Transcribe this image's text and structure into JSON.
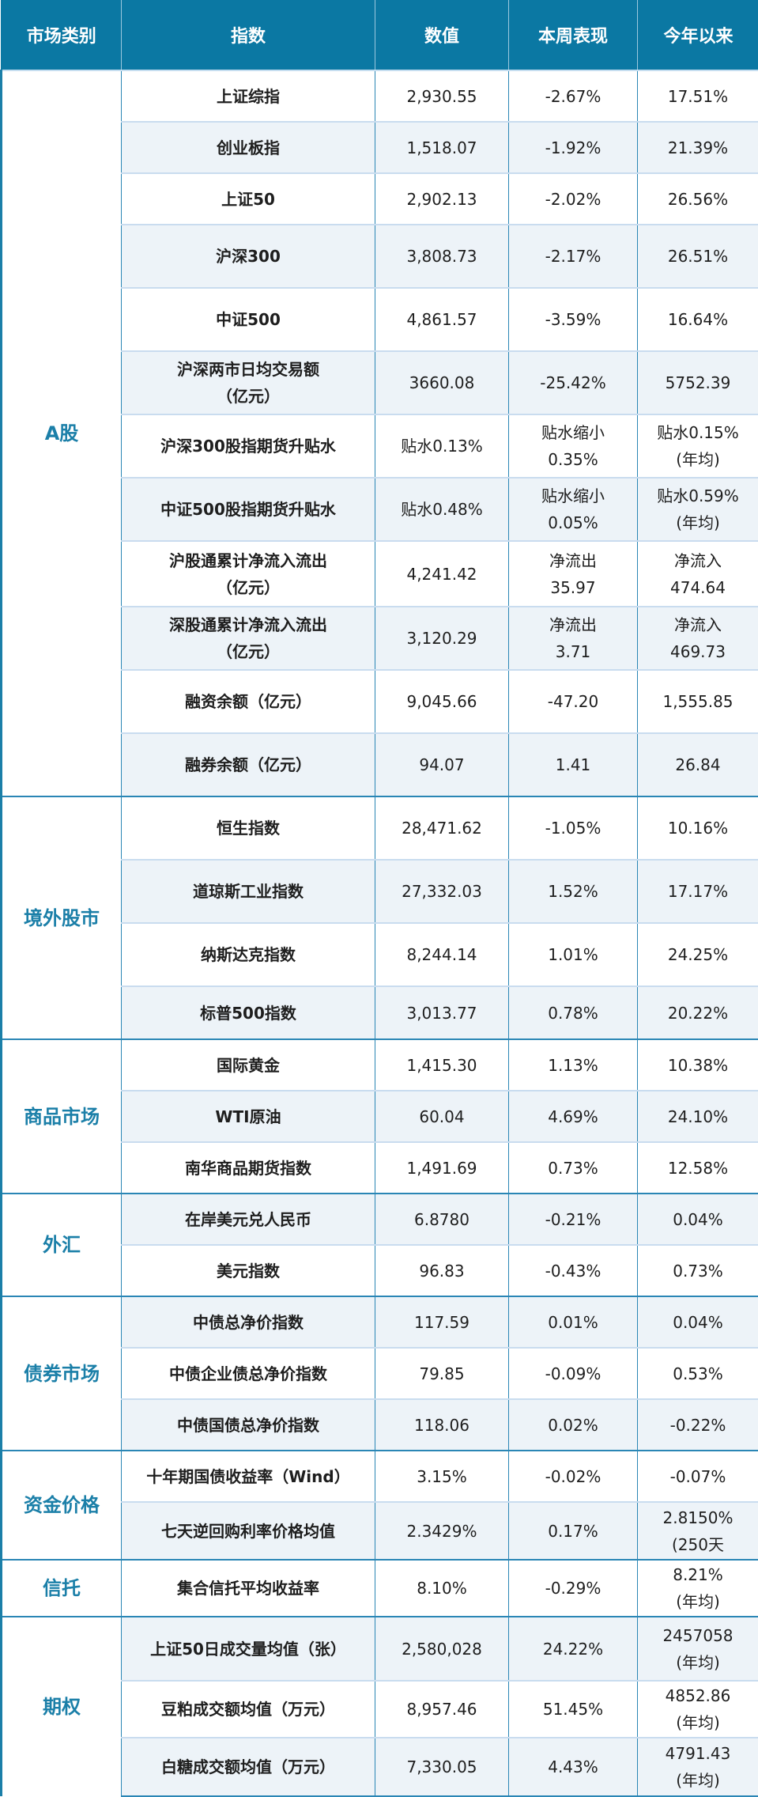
{
  "header": {
    "col_category": "市场类别",
    "col_index": "指数",
    "col_value": "数值",
    "col_week": "本周表现",
    "col_ytd": "今年以来"
  },
  "colors": {
    "header_bg": "#0b78a3",
    "category_text": "#1b7fa8",
    "row_shade": "#edf3f8"
  },
  "sections": [
    {
      "category": "A股",
      "rows": [
        {
          "index": "上证综指",
          "value": "2,930.55",
          "week": "-2.67%",
          "ytd": "17.51%"
        },
        {
          "index": "创业板指",
          "value": "1,518.07",
          "week": "-1.92%",
          "ytd": "21.39%"
        },
        {
          "index": "上证50",
          "value": "2,902.13",
          "week": "-2.02%",
          "ytd": "26.56%"
        },
        {
          "index": "沪深300",
          "value": "3,808.73",
          "week": "-2.17%",
          "ytd": "26.51%"
        },
        {
          "index": "中证500",
          "value": "4,861.57",
          "week": "-3.59%",
          "ytd": "16.64%"
        },
        {
          "index": "沪深两市日均交易额\n（亿元）",
          "value": "3660.08",
          "week": "-25.42%",
          "ytd": "5752.39"
        },
        {
          "index": "沪深300股指期货升贴水",
          "value": "贴水0.13%",
          "week": "贴水缩小\n0.35%",
          "ytd": "贴水0.15%\n(年均)"
        },
        {
          "index": "中证500股指期货升贴水",
          "value": "贴水0.48%",
          "week": "贴水缩小\n0.05%",
          "ytd": "贴水0.59%\n(年均)"
        },
        {
          "index": "沪股通累计净流入流出\n（亿元）",
          "value": "4,241.42",
          "week": "净流出\n35.97",
          "ytd": "净流入\n474.64"
        },
        {
          "index": "深股通累计净流入流出\n（亿元）",
          "value": "3,120.29",
          "week": "净流出\n3.71",
          "ytd": "净流入\n469.73"
        },
        {
          "index": "融资余额（亿元）",
          "value": "9,045.66",
          "week": "-47.20",
          "ytd": "1,555.85"
        },
        {
          "index": "融券余额（亿元）",
          "value": "94.07",
          "week": "1.41",
          "ytd": "26.84"
        }
      ]
    },
    {
      "category": "境外股市",
      "rows": [
        {
          "index": "恒生指数",
          "value": "28,471.62",
          "week": "-1.05%",
          "ytd": "10.16%"
        },
        {
          "index": "道琼斯工业指数",
          "value": "27,332.03",
          "week": "1.52%",
          "ytd": "17.17%"
        },
        {
          "index": "纳斯达克指数",
          "value": "8,244.14",
          "week": "1.01%",
          "ytd": "24.25%"
        },
        {
          "index": "标普500指数",
          "value": "3,013.77",
          "week": "0.78%",
          "ytd": "20.22%"
        }
      ]
    },
    {
      "category": "商品市场",
      "rows": [
        {
          "index": "国际黄金",
          "value": "1,415.30",
          "week": "1.13%",
          "ytd": "10.38%"
        },
        {
          "index": "WTI原油",
          "value": "60.04",
          "week": "4.69%",
          "ytd": "24.10%"
        },
        {
          "index": "南华商品期货指数",
          "value": "1,491.69",
          "week": "0.73%",
          "ytd": "12.58%"
        }
      ]
    },
    {
      "category": "外汇",
      "rows": [
        {
          "index": "在岸美元兑人民币",
          "value": "6.8780",
          "week": "-0.21%",
          "ytd": "0.04%"
        },
        {
          "index": "美元指数",
          "value": "96.83",
          "week": "-0.43%",
          "ytd": "0.73%"
        }
      ]
    },
    {
      "category": "债券市场",
      "rows": [
        {
          "index": "中债总净价指数",
          "value": "117.59",
          "week": "0.01%",
          "ytd": "0.04%"
        },
        {
          "index": "中债企业债总净价指数",
          "value": "79.85",
          "week": "-0.09%",
          "ytd": "0.53%"
        },
        {
          "index": "中债国债总净价指数",
          "value": "118.06",
          "week": "0.02%",
          "ytd": "-0.22%"
        }
      ]
    },
    {
      "category": "资金价格",
      "rows": [
        {
          "index": "十年期国债收益率（Wind）",
          "value": "3.15%",
          "week": "-0.02%",
          "ytd": "-0.07%"
        },
        {
          "index": "七天逆回购利率价格均值",
          "value": "2.3429%",
          "week": "0.17%",
          "ytd": "2.8150%\n(250天"
        }
      ]
    },
    {
      "category": "信托",
      "rows": [
        {
          "index": "集合信托平均收益率",
          "value": "8.10%",
          "week": "-0.29%",
          "ytd": "8.21%\n(年均)"
        }
      ]
    },
    {
      "category": "期权",
      "rows": [
        {
          "index": "上证50日成交量均值（张）",
          "value": "2,580,028",
          "week": "24.22%",
          "ytd": "2457058\n(年均)"
        },
        {
          "index": "豆粕成交额均值（万元）",
          "value": "8,957.46",
          "week": "51.45%",
          "ytd": "4852.86\n(年均)"
        },
        {
          "index": "白糖成交额均值（万元）",
          "value": "7,330.05",
          "week": "4.43%",
          "ytd": "4791.43\n(年均)"
        }
      ]
    }
  ]
}
